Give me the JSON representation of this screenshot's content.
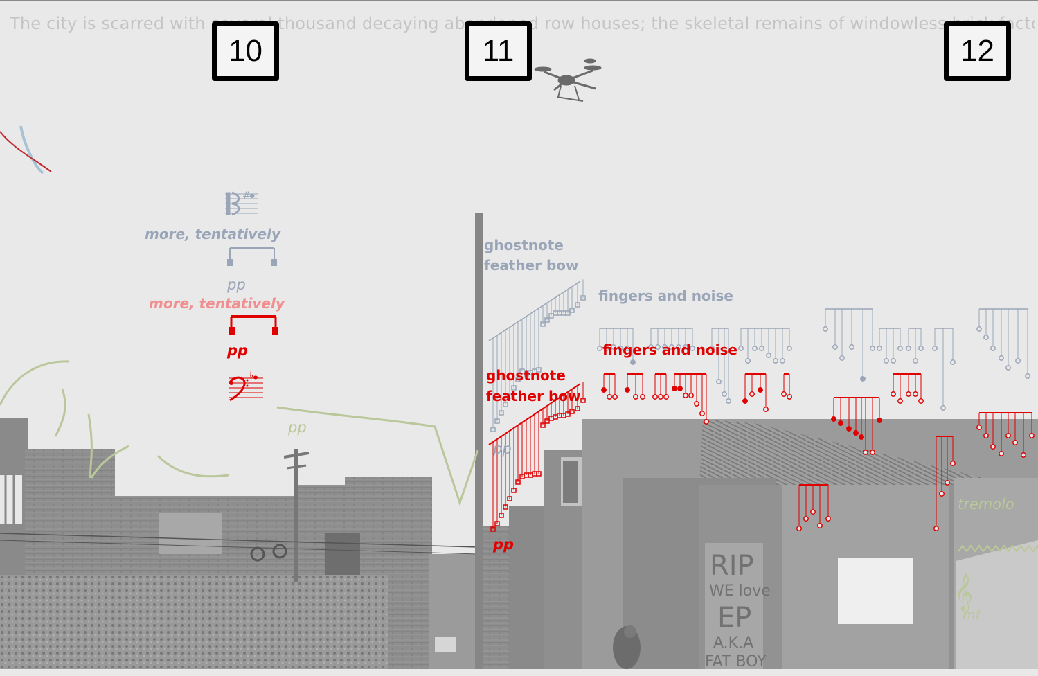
{
  "narrative": "The city is scarred with several thousand decaying abandoned row houses; the skeletal remains of windowless brick factories and",
  "rehearsal_marks": [
    "10",
    "11",
    "12"
  ],
  "labels": {
    "more_tentatively_grey": "more, tentatively",
    "pp_grey_upper": "pp",
    "more_tentatively_red": "more, tentatively",
    "pp_red_upper": "pp",
    "pp_green": "pp",
    "ghostnote_grey_1": "ghostnote",
    "ghostnote_grey_2": "feather bow",
    "fingers_noise_grey": "fingers and noise",
    "ghostnote_red_1": "ghostnote",
    "ghostnote_red_2": "feather bow",
    "fingers_noise_red": "fingers and noise",
    "pp_grey_lower": "pp",
    "pp_red_lower": "pp",
    "tremolo": "tremolo",
    "mf": "mf"
  },
  "graffiti": [
    "RIP",
    "WE love",
    "EP",
    "A.K.A",
    "FAT BOY"
  ],
  "icons": {
    "drone": "drone-icon",
    "alto_clef": "alto-clef-icon",
    "bass_clef": "bass-clef-icon",
    "treble_clef": "treble-clef-icon"
  },
  "colors": {
    "background": "#e9e9e9",
    "grey_part": "#9aa6b8",
    "red_part": "#e00000",
    "green_part": "#b9c79a",
    "photo": "#8f8f8f"
  }
}
